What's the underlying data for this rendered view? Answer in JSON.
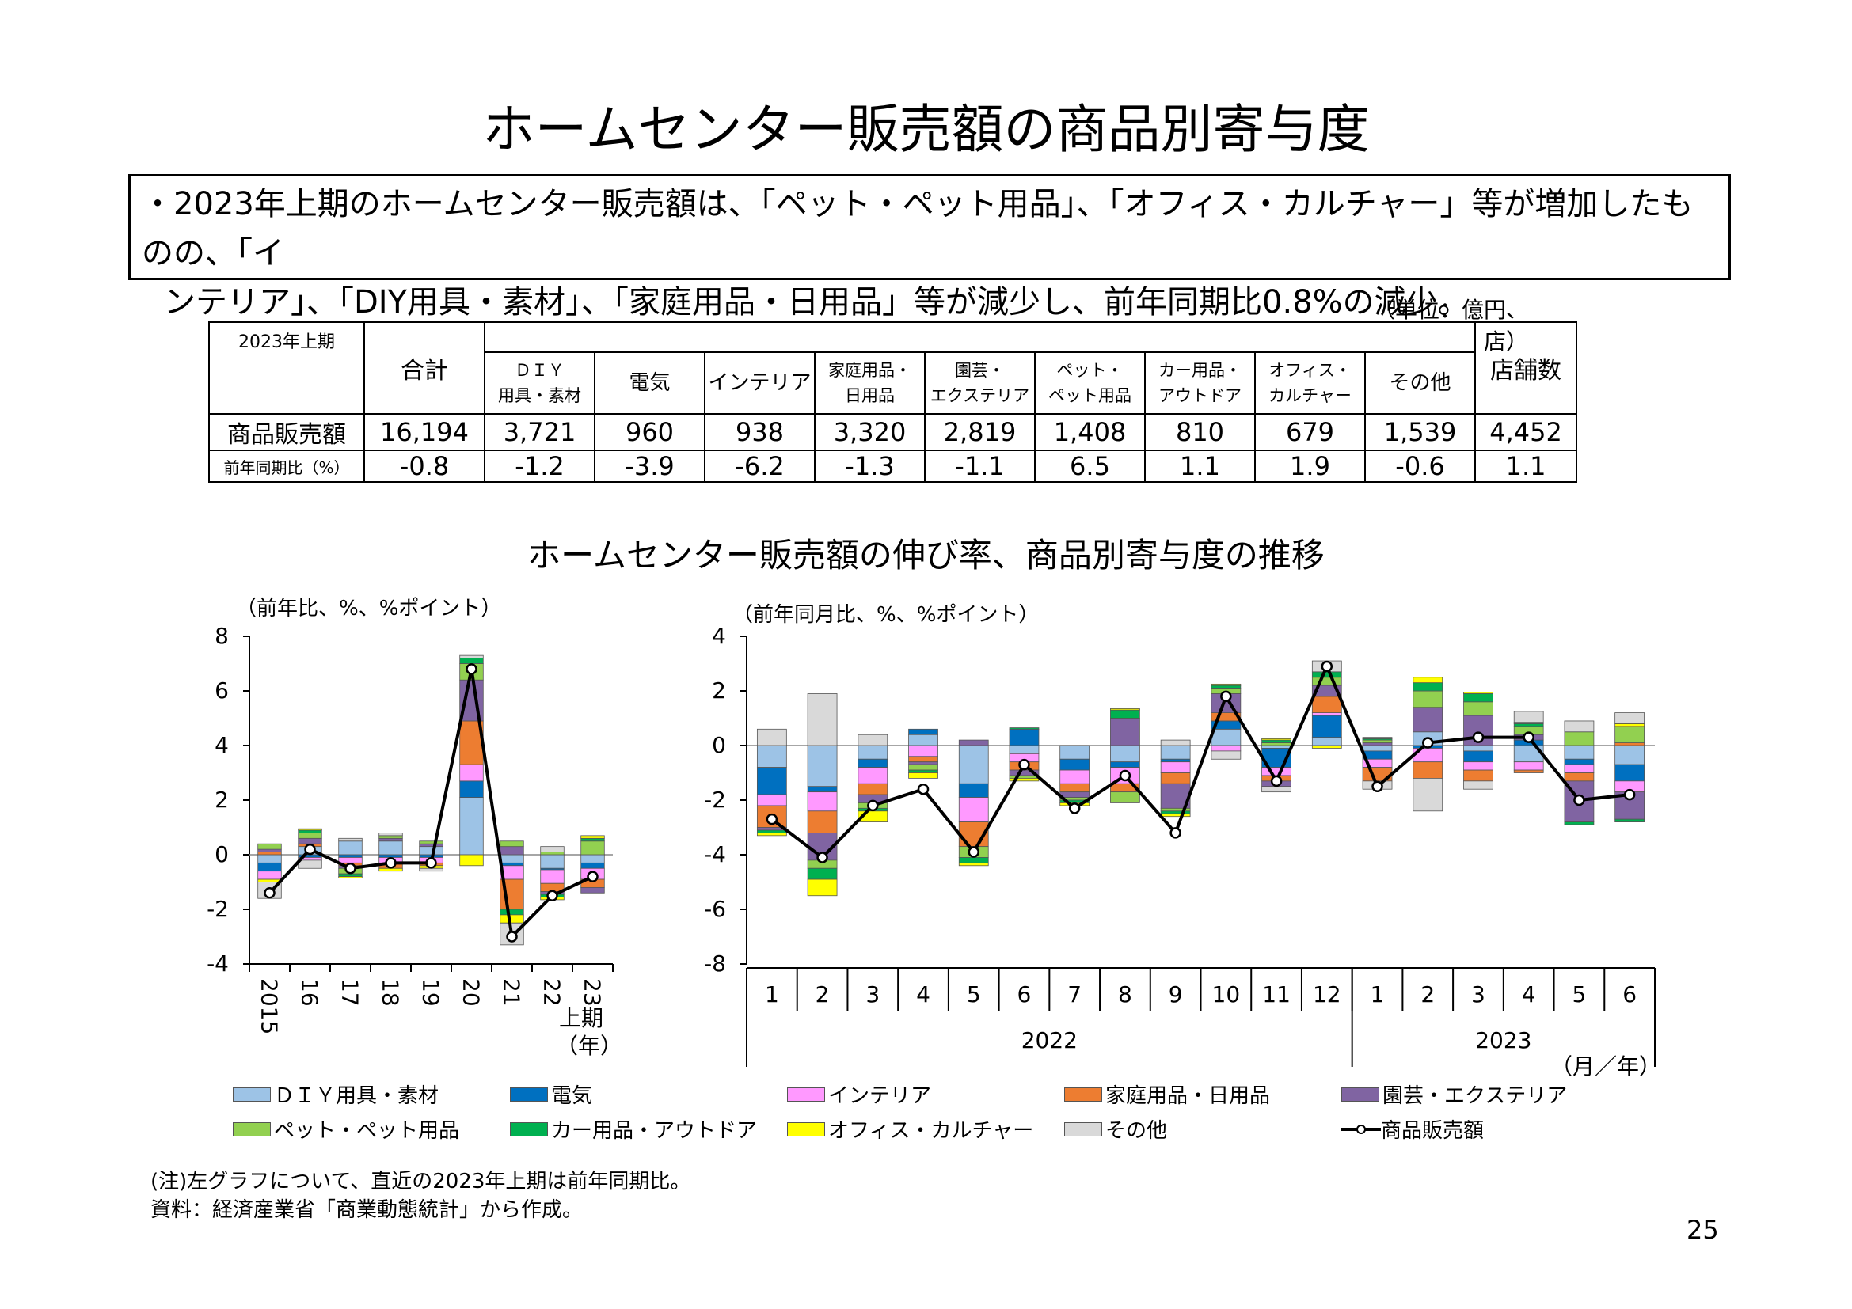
{
  "page_title": "ホームセンター販売額の商品別寄与度",
  "summary": {
    "line1": "・2023年上期のホームセンター販売額は、「ペット・ペット用品」、「オフィス・カルチャー」等が増加したものの、「イ",
    "line2": "ンテリア」、「DIY用具・素材」、「家庭用品・日用品」等が減少し、前年同期比0.8%の減少。"
  },
  "unit_label": "（単位：億円、店）",
  "table": {
    "corner": "2023年上期",
    "total_label": "合計",
    "stores_label": "店舗数",
    "categories": [
      {
        "l1": "ＤＩＹ",
        "l2": "用具・素材"
      },
      {
        "l1": "電気",
        "l2": ""
      },
      {
        "l1": "インテリア",
        "l2": ""
      },
      {
        "l1": "家庭用品・",
        "l2": "日用品"
      },
      {
        "l1": "園芸・",
        "l2": "エクステリア"
      },
      {
        "l1": "ペット・",
        "l2": "ペット用品"
      },
      {
        "l1": "カー用品・",
        "l2": "アウトドア"
      },
      {
        "l1": "オフィス・",
        "l2": "カルチャー"
      },
      {
        "l1": "その他",
        "l2": ""
      }
    ],
    "row_sales": {
      "label": "商品販売額",
      "total": "16,194",
      "values": [
        "3,721",
        "960",
        "938",
        "3,320",
        "2,819",
        "1,408",
        "810",
        "679",
        "1,539"
      ],
      "stores": "4,452"
    },
    "row_yoy": {
      "label": "前年同期比（%）",
      "total": "-0.8",
      "values": [
        "-1.2",
        "-3.9",
        "-6.2",
        "-1.3",
        "-1.1",
        "6.5",
        "1.1",
        "1.9",
        "-0.6"
      ],
      "stores": "1.1"
    }
  },
  "chart_title": "ホームセンター販売額の伸び率、商品別寄与度の推移",
  "left_ylabel": "（前年比、%、%ポイント）",
  "right_ylabel": "（前年同月比、%、%ポイント）",
  "left_xunit_1": "上期",
  "left_xunit_2": "（年）",
  "right_xunit": "（月／年）",
  "colors": [
    "#9dc3e6",
    "#0070c0",
    "#ff99ff",
    "#ed7d31",
    "#8064a2",
    "#92d050",
    "#00b050",
    "#ffff00",
    "#d9d9d9"
  ],
  "chart_data": [
    {
      "type": "bar",
      "stacked": true,
      "categories": [
        "2015",
        "16",
        "17",
        "18",
        "19",
        "20",
        "21",
        "22",
        "23"
      ],
      "ylim": [
        -4,
        8
      ],
      "yticks": [
        -4,
        -2,
        0,
        2,
        4,
        6,
        8
      ],
      "series": [
        {
          "name": "ＤＩＹ用具・素材",
          "values": [
            -0.3,
            0.3,
            0.5,
            0.5,
            0.3,
            2.1,
            -0.3,
            -0.5,
            -0.3
          ]
        },
        {
          "name": "電気",
          "values": [
            -0.3,
            -0.1,
            -0.1,
            -0.1,
            -0.1,
            0.6,
            -0.1,
            -0.05,
            -0.2
          ]
        },
        {
          "name": "インテリア",
          "values": [
            -0.3,
            -0.1,
            -0.2,
            -0.2,
            -0.2,
            0.6,
            -0.5,
            -0.5,
            -0.4
          ]
        },
        {
          "name": "家庭用品・日用品",
          "values": [
            0.1,
            0.1,
            -0.1,
            -0.2,
            -0.1,
            1.6,
            -1.1,
            -0.3,
            -0.3
          ]
        },
        {
          "name": "園芸・エクステリア",
          "values": [
            0.1,
            0.2,
            -0.1,
            0.1,
            0.1,
            1.5,
            0.3,
            -0.1,
            -0.2
          ]
        },
        {
          "name": "ペット・ペット用品",
          "values": [
            0.2,
            0.2,
            -0.2,
            0.1,
            0.1,
            0.6,
            0.2,
            0.1,
            0.5
          ]
        },
        {
          "name": "カー用品・アウトドア",
          "values": [
            0.0,
            0.1,
            -0.1,
            0.0,
            0.0,
            0.2,
            -0.2,
            -0.1,
            0.1
          ]
        },
        {
          "name": "オフィス・カルチャー",
          "values": [
            -0.1,
            0.05,
            -0.05,
            -0.1,
            -0.1,
            -0.4,
            -0.3,
            -0.1,
            0.1
          ]
        },
        {
          "name": "その他",
          "values": [
            -0.6,
            -0.3,
            0.1,
            0.1,
            -0.1,
            0.1,
            -0.8,
            0.2,
            0.0
          ]
        }
      ],
      "line": {
        "name": "商品販売額",
        "values": [
          -1.4,
          0.2,
          -0.5,
          -0.3,
          -0.3,
          6.8,
          -3.0,
          -1.5,
          -0.8
        ]
      }
    },
    {
      "type": "bar",
      "stacked": true,
      "categories": [
        "1",
        "2",
        "3",
        "4",
        "5",
        "6",
        "7",
        "8",
        "9",
        "10",
        "11",
        "12",
        "1",
        "2",
        "3",
        "4",
        "5",
        "6"
      ],
      "groups": [
        {
          "label": "2022",
          "from": 0,
          "to": 11
        },
        {
          "label": "2023",
          "from": 12,
          "to": 17
        }
      ],
      "ylim": [
        -8,
        4
      ],
      "yticks": [
        -8,
        -6,
        -4,
        -2,
        0,
        2,
        4
      ],
      "series": [
        {
          "name": "ＤＩＹ用具・素材",
          "values": [
            -0.8,
            -1.5,
            -0.5,
            0.4,
            -1.4,
            -0.3,
            -0.5,
            -0.6,
            -0.5,
            0.6,
            -0.1,
            0.3,
            -0.2,
            0.5,
            -0.2,
            -0.6,
            -0.5,
            -0.7
          ]
        },
        {
          "name": "電気",
          "values": [
            -1.0,
            -0.2,
            -0.3,
            0.2,
            -0.5,
            0.6,
            -0.4,
            -0.2,
            -0.1,
            0.3,
            -0.7,
            0.8,
            -0.3,
            -0.1,
            -0.4,
            0.2,
            -0.2,
            -0.6
          ]
        },
        {
          "name": "インテリア",
          "values": [
            -0.4,
            -0.7,
            -0.6,
            -0.4,
            -0.9,
            -0.3,
            -0.5,
            -0.6,
            -0.4,
            -0.2,
            -0.3,
            0.1,
            -0.3,
            -0.5,
            -0.3,
            -0.3,
            -0.3,
            -0.4
          ]
        },
        {
          "name": "家庭用品・日用品",
          "values": [
            -0.8,
            -0.8,
            -0.4,
            -0.2,
            -0.9,
            -0.3,
            -0.3,
            -0.3,
            -0.4,
            0.3,
            -0.2,
            0.6,
            -0.5,
            -0.6,
            -0.4,
            -0.1,
            -0.3,
            0.1
          ]
        },
        {
          "name": "園芸・エクステリア",
          "values": [
            -0.1,
            -1.0,
            -0.3,
            -0.1,
            0.2,
            -0.2,
            -0.2,
            1.0,
            -0.9,
            0.7,
            -0.2,
            0.4,
            0.1,
            0.9,
            1.1,
            0.2,
            -1.5,
            -1.0
          ]
        },
        {
          "name": "ペット・ペット用品",
          "values": [
            0.0,
            -0.3,
            -0.2,
            -0.2,
            -0.4,
            -0.1,
            -0.1,
            -0.4,
            -0.1,
            0.2,
            0.1,
            0.3,
            0.1,
            0.6,
            0.5,
            0.3,
            0.5,
            0.6
          ]
        },
        {
          "name": "カー用品・アウトドア",
          "values": [
            -0.1,
            -0.4,
            -0.1,
            -0.1,
            -0.2,
            0.05,
            -0.1,
            0.3,
            -0.1,
            0.1,
            0.1,
            0.2,
            0.05,
            0.3,
            0.3,
            0.1,
            -0.1,
            -0.1
          ]
        },
        {
          "name": "オフィス・カルチャー",
          "values": [
            -0.1,
            -0.6,
            -0.4,
            -0.2,
            -0.1,
            -0.1,
            -0.1,
            0.05,
            -0.1,
            0.05,
            0.05,
            -0.1,
            0.05,
            0.2,
            0.05,
            0.05,
            0.0,
            0.1
          ]
        },
        {
          "name": "その他",
          "values": [
            0.6,
            1.9,
            0.4,
            0.0,
            0.0,
            0.0,
            0.0,
            0.0,
            0.2,
            -0.3,
            -0.2,
            0.4,
            -0.3,
            -1.2,
            -0.3,
            0.4,
            0.4,
            0.4
          ]
        }
      ],
      "line": {
        "name": "商品販売額",
        "values": [
          -2.7,
          -4.1,
          -2.2,
          -1.6,
          -3.9,
          -0.7,
          -2.3,
          -1.1,
          -3.2,
          1.8,
          -1.3,
          2.9,
          -1.5,
          0.1,
          0.3,
          0.3,
          -2.0,
          -1.8
        ]
      }
    }
  ],
  "legend": [
    "ＤＩＹ用具・素材",
    "電気",
    "インテリア",
    "家庭用品・日用品",
    "園芸・エクステリア",
    "ペット・ペット用品",
    "カー用品・アウトドア",
    "オフィス・カルチャー",
    "その他",
    "商品販売額"
  ],
  "note_1": "(注)左グラフについて、直近の2023年上期は前年同期比。",
  "note_2": "資料：経済産業省「商業動態統計」から作成。",
  "page_number": "25"
}
